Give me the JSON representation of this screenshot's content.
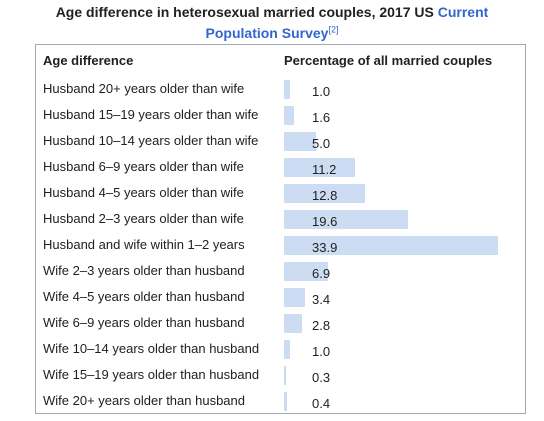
{
  "caption": {
    "text": "Age difference in heterosexual married couples, 2017 US",
    "link_line1": "Current",
    "link_line2": "Population Survey",
    "ref": "[2]"
  },
  "colors": {
    "bar": "#ccdcf2",
    "link": "#3366cc",
    "border": "#a2a9b1",
    "text": "#202122"
  },
  "chart_data": {
    "type": "bar",
    "orientation": "horizontal",
    "xlabel": "Age difference",
    "ylabel": "Percentage of all married couples",
    "categories": [
      "Husband 20+ years older than wife",
      "Husband 15–19 years older than wife",
      "Husband 10–14 years older than wife",
      "Husband 6–9 years older than wife",
      "Husband 4–5 years older than wife",
      "Husband 2–3 years older than wife",
      "Husband and wife within 1–2 years",
      "Wife 2–3 years older than husband",
      "Wife 4–5 years older than husband",
      "Wife 6–9 years older than husband",
      "Wife 10–14 years older than husband",
      "Wife 15–19 years older than husband",
      "Wife 20+ years older than husband"
    ],
    "values": [
      1.0,
      1.6,
      5.0,
      11.2,
      12.8,
      19.6,
      33.9,
      6.9,
      3.4,
      2.8,
      1.0,
      0.3,
      0.4
    ],
    "value_labels": [
      "1.0",
      "1.6",
      "5.0",
      "11.2",
      "12.8",
      "19.6",
      "33.9",
      "6.9",
      "3.4",
      "2.8",
      "1.0",
      "0.3",
      "0.4"
    ],
    "xlim": [
      0,
      33.9
    ],
    "grid": false,
    "legend": "none"
  }
}
